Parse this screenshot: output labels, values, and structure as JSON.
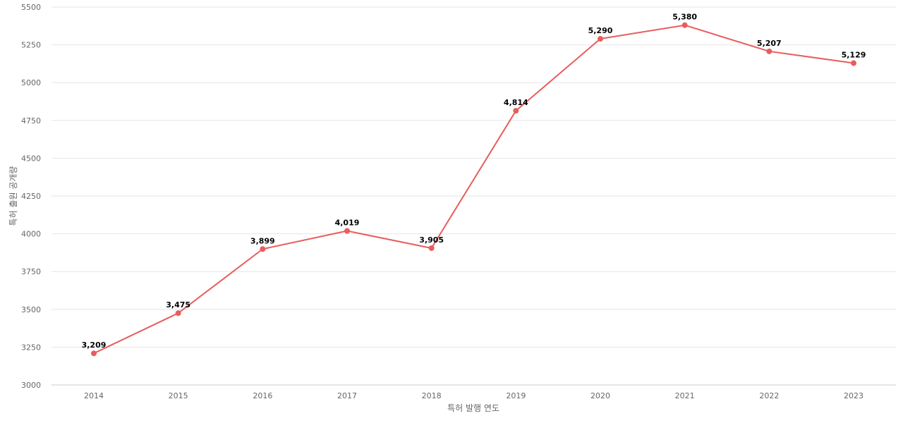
{
  "chart_data": {
    "type": "line",
    "title": "",
    "xlabel": "특허 발행 연도",
    "ylabel": "특허 출원 공개량",
    "categories": [
      "2014",
      "2015",
      "2016",
      "2017",
      "2018",
      "2019",
      "2020",
      "2021",
      "2022",
      "2023"
    ],
    "series": [
      {
        "values": [
          3209,
          3475,
          3899,
          4019,
          3905,
          4814,
          5290,
          5380,
          5207,
          5129
        ],
        "data_labels": [
          "3,209",
          "3,475",
          "3,899",
          "4,019",
          "3,905",
          "4,814",
          "5,290",
          "5,380",
          "5,207",
          "5,129"
        ],
        "color": "#e85d5d"
      }
    ],
    "ylim": [
      3000,
      5500
    ],
    "yticks": [
      "3000",
      "3250",
      "3500",
      "3750",
      "4000",
      "4250",
      "4500",
      "4750",
      "5000",
      "5250",
      "5500"
    ],
    "grid": true,
    "legend": "none"
  }
}
